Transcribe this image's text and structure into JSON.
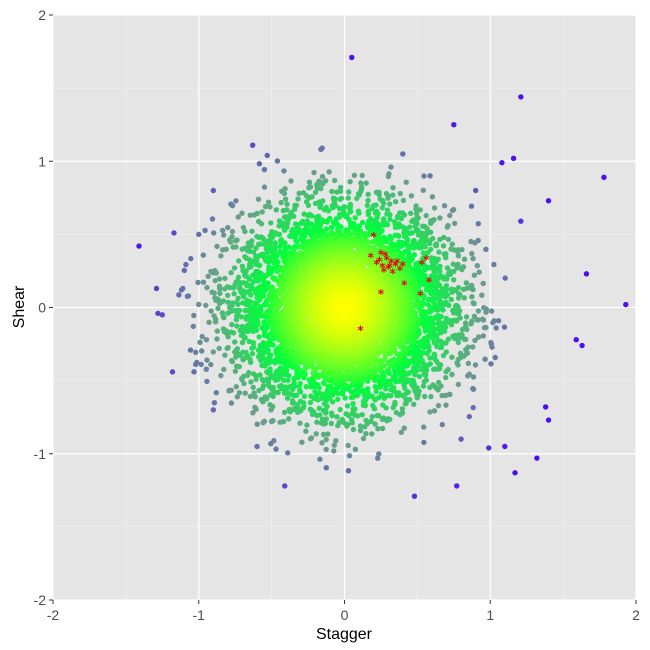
{
  "chart_data": {
    "type": "scatter",
    "title": "",
    "xlabel": "Stagger",
    "ylabel": "Shear",
    "xlim": [
      -2,
      2
    ],
    "ylim": [
      -2,
      2
    ],
    "x_ticks": [
      -2,
      -1,
      0,
      1,
      2
    ],
    "y_ticks": [
      -2,
      -1,
      0,
      1,
      2
    ],
    "x_tick_labels": [
      "-2",
      "-1",
      "0",
      "1",
      "2"
    ],
    "y_tick_labels": [
      "-2",
      "-1",
      "0",
      "1",
      "2"
    ],
    "grid": true,
    "legend": "none",
    "colors": {
      "panel_bg": "#e5e5e5",
      "grid_major": "#ffffff",
      "grid_minor": "#f2f2f2",
      "center_color": "#ffff00",
      "mid_color": "#00ff3c",
      "outer_color": "#6e9a8e",
      "outlier_color": "#4b0ff0",
      "highlight_color": "#ee0000"
    },
    "series": [
      {
        "marker": "circle",
        "color_mapping": "radial distance from origin (yellow → green → teal → blue)",
        "values_description": "dense cloud of several thousand points roughly centered on (0,0) with spread ~0.6 in both x and y",
        "points": [
          [
            0.05,
            1.71
          ],
          [
            1.21,
            1.44
          ],
          [
            0.75,
            1.25
          ],
          [
            -0.63,
            1.11
          ],
          [
            -0.53,
            1.04
          ],
          [
            1.78,
            0.89
          ],
          [
            1.16,
            1.02
          ],
          [
            1.08,
            0.99
          ],
          [
            1.21,
            0.59
          ],
          [
            1.4,
            0.73
          ],
          [
            -0.9,
            0.8
          ],
          [
            1.93,
            0.02
          ],
          [
            -1.41,
            0.42
          ],
          [
            -1.17,
            0.51
          ],
          [
            -1.29,
            0.13
          ],
          [
            -1.25,
            -0.05
          ],
          [
            -1.28,
            -0.04
          ],
          [
            -1.18,
            -0.44
          ],
          [
            1.66,
            0.23
          ],
          [
            1.59,
            -0.22
          ],
          [
            1.63,
            -0.26
          ],
          [
            1.4,
            -0.77
          ],
          [
            1.38,
            -0.68
          ],
          [
            -0.41,
            -1.22
          ],
          [
            0.48,
            -1.29
          ],
          [
            0.77,
            -1.22
          ],
          [
            1.32,
            -1.03
          ],
          [
            1.17,
            -1.13
          ],
          [
            0.99,
            -0.96
          ],
          [
            1.1,
            -0.95
          ],
          [
            -1.0,
            0.5
          ],
          [
            -0.9,
            -0.7
          ],
          [
            0.9,
            0.8
          ],
          [
            0.8,
            -0.9
          ],
          [
            -0.6,
            -0.95
          ],
          [
            0.4,
            1.05
          ]
        ]
      },
      {
        "marker": "asterisk",
        "color": "#ee0000",
        "points": [
          [
            0.2,
            0.49
          ],
          [
            0.18,
            0.35
          ],
          [
            0.25,
            0.37
          ],
          [
            0.29,
            0.33
          ],
          [
            0.32,
            0.31
          ],
          [
            0.35,
            0.29
          ],
          [
            0.26,
            0.28
          ],
          [
            0.3,
            0.27
          ],
          [
            0.38,
            0.26
          ],
          [
            0.33,
            0.24
          ],
          [
            0.22,
            0.3
          ],
          [
            0.28,
            0.36
          ],
          [
            0.36,
            0.31
          ],
          [
            0.31,
            0.28
          ],
          [
            0.27,
            0.25
          ],
          [
            0.4,
            0.29
          ],
          [
            0.24,
            0.32
          ],
          [
            0.53,
            0.3
          ],
          [
            0.56,
            0.33
          ],
          [
            0.58,
            0.18
          ],
          [
            0.41,
            0.16
          ],
          [
            0.52,
            0.09
          ],
          [
            0.25,
            0.1
          ],
          [
            0.11,
            -0.15
          ]
        ]
      }
    ]
  }
}
